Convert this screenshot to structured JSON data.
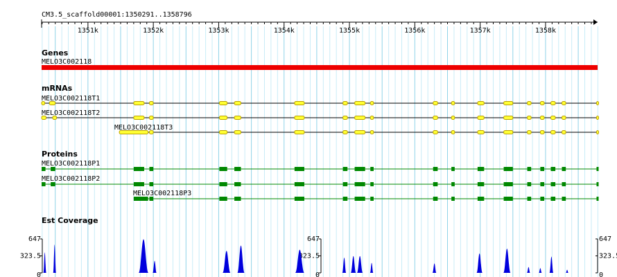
{
  "ruler": {
    "title": "CM3.5_scaffold00001:1350291..1358796",
    "start": 1350291,
    "end": 1358796,
    "tick_labels": [
      "1351k",
      "1352k",
      "1353k",
      "1354k",
      "1355k",
      "1356k",
      "1357k",
      "1358k"
    ]
  },
  "genes": {
    "section_label": "Genes",
    "items": [
      {
        "name": "MELO3C002118",
        "start": 1350291,
        "end": 1358796
      }
    ]
  },
  "mrnas": {
    "section_label": "mRNAs",
    "items": [
      {
        "name": "MELO3C002118T1",
        "start": 1350291,
        "end": 1358796,
        "exons": [
          [
            1350291,
            1350340
          ],
          [
            1350410,
            1350500
          ],
          [
            1351700,
            1351860
          ],
          [
            1351940,
            1352000
          ],
          [
            1353010,
            1353130
          ],
          [
            1353240,
            1353340
          ],
          [
            1354160,
            1354310
          ],
          [
            1354900,
            1354970
          ],
          [
            1355080,
            1355240
          ],
          [
            1355320,
            1355370
          ],
          [
            1356280,
            1356350
          ],
          [
            1356560,
            1356610
          ],
          [
            1356960,
            1357060
          ],
          [
            1357360,
            1357500
          ],
          [
            1357720,
            1357780
          ],
          [
            1357920,
            1357980
          ],
          [
            1358080,
            1358150
          ],
          [
            1358250,
            1358310
          ],
          [
            1358780,
            1358796
          ]
        ]
      },
      {
        "name": "MELO3C002118T2",
        "start": 1350291,
        "end": 1358796,
        "exons": [
          [
            1350291,
            1350360
          ],
          [
            1350460,
            1350520
          ],
          [
            1351700,
            1351860
          ],
          [
            1351940,
            1352000
          ],
          [
            1353010,
            1353130
          ],
          [
            1353240,
            1353340
          ],
          [
            1354160,
            1354310
          ],
          [
            1354900,
            1354970
          ],
          [
            1355080,
            1355240
          ],
          [
            1355320,
            1355370
          ],
          [
            1356280,
            1356350
          ],
          [
            1356560,
            1356610
          ],
          [
            1356960,
            1357060
          ],
          [
            1357360,
            1357500
          ],
          [
            1357720,
            1357780
          ],
          [
            1357920,
            1357980
          ],
          [
            1358080,
            1358150
          ],
          [
            1358250,
            1358310
          ],
          [
            1358780,
            1358796
          ]
        ]
      },
      {
        "name": "MELO3C002118T3",
        "start": 1351480,
        "end": 1358796,
        "exons": [
          [
            1351480,
            1351920
          ],
          [
            1351940,
            1352000
          ],
          [
            1353010,
            1353130
          ],
          [
            1353240,
            1353340
          ],
          [
            1354160,
            1354310
          ],
          [
            1354900,
            1354970
          ],
          [
            1355080,
            1355240
          ],
          [
            1355320,
            1355370
          ],
          [
            1356280,
            1356350
          ],
          [
            1356560,
            1356610
          ],
          [
            1356960,
            1357060
          ],
          [
            1357360,
            1357500
          ],
          [
            1357720,
            1357780
          ],
          [
            1357920,
            1357980
          ],
          [
            1358080,
            1358150
          ],
          [
            1358250,
            1358310
          ],
          [
            1358780,
            1358796
          ]
        ]
      }
    ]
  },
  "proteins": {
    "section_label": "Proteins",
    "items": [
      {
        "name": "MELO3C002118P1",
        "start": 1350291,
        "end": 1358796,
        "cds": [
          [
            1350291,
            1350350
          ],
          [
            1350430,
            1350500
          ],
          [
            1351700,
            1351860
          ],
          [
            1351940,
            1352000
          ],
          [
            1353010,
            1353130
          ],
          [
            1353240,
            1353340
          ],
          [
            1354160,
            1354310
          ],
          [
            1354900,
            1354970
          ],
          [
            1355080,
            1355240
          ],
          [
            1355320,
            1355370
          ],
          [
            1356280,
            1356350
          ],
          [
            1356560,
            1356610
          ],
          [
            1356960,
            1357060
          ],
          [
            1357360,
            1357500
          ],
          [
            1357720,
            1357780
          ],
          [
            1357920,
            1357980
          ],
          [
            1358080,
            1358150
          ],
          [
            1358250,
            1358310
          ],
          [
            1358780,
            1358796
          ]
        ]
      },
      {
        "name": "MELO3C002118P2",
        "start": 1350291,
        "end": 1358796,
        "cds": [
          [
            1350291,
            1350350
          ],
          [
            1350430,
            1350500
          ],
          [
            1351700,
            1351860
          ],
          [
            1351940,
            1352000
          ],
          [
            1353010,
            1353130
          ],
          [
            1353240,
            1353340
          ],
          [
            1354160,
            1354310
          ],
          [
            1354900,
            1354970
          ],
          [
            1355080,
            1355240
          ],
          [
            1355320,
            1355370
          ],
          [
            1356280,
            1356350
          ],
          [
            1356560,
            1356610
          ],
          [
            1356960,
            1357060
          ],
          [
            1357360,
            1357500
          ],
          [
            1357720,
            1357780
          ],
          [
            1357920,
            1357980
          ],
          [
            1358080,
            1358150
          ],
          [
            1358250,
            1358310
          ],
          [
            1358780,
            1358796
          ]
        ]
      },
      {
        "name": "MELO3C002118P3",
        "start": 1351700,
        "end": 1358796,
        "cds": [
          [
            1351700,
            1351920
          ],
          [
            1351940,
            1352000
          ],
          [
            1353010,
            1353130
          ],
          [
            1353240,
            1353340
          ],
          [
            1354160,
            1354310
          ],
          [
            1354900,
            1354970
          ],
          [
            1355080,
            1355240
          ],
          [
            1355320,
            1355370
          ],
          [
            1356280,
            1356350
          ],
          [
            1356560,
            1356610
          ],
          [
            1356960,
            1357060
          ],
          [
            1357360,
            1357500
          ],
          [
            1357720,
            1357780
          ],
          [
            1357920,
            1357980
          ],
          [
            1358080,
            1358150
          ],
          [
            1358250,
            1358310
          ],
          [
            1358780,
            1358796
          ]
        ]
      }
    ]
  },
  "est_coverage": {
    "section_label": "Est Coverage",
    "y_max_label": "647",
    "y_mid_label": "323.5",
    "y_min_label": "0",
    "y_max": 647,
    "peaks": [
      {
        "center": 1350340,
        "width": 45,
        "height": 390
      },
      {
        "center": 1350490,
        "width": 45,
        "height": 540
      },
      {
        "center": 1351850,
        "width": 150,
        "height": 640
      },
      {
        "center": 1352020,
        "width": 60,
        "height": 230
      },
      {
        "center": 1353120,
        "width": 120,
        "height": 420
      },
      {
        "center": 1353340,
        "width": 110,
        "height": 520
      },
      {
        "center": 1354240,
        "width": 140,
        "height": 440
      },
      {
        "center": 1354920,
        "width": 60,
        "height": 290
      },
      {
        "center": 1355060,
        "width": 80,
        "height": 320
      },
      {
        "center": 1355160,
        "width": 90,
        "height": 320
      },
      {
        "center": 1355340,
        "width": 50,
        "height": 190
      },
      {
        "center": 1356300,
        "width": 60,
        "height": 180
      },
      {
        "center": 1356990,
        "width": 90,
        "height": 370
      },
      {
        "center": 1357410,
        "width": 110,
        "height": 460
      },
      {
        "center": 1357740,
        "width": 50,
        "height": 110
      },
      {
        "center": 1357920,
        "width": 45,
        "height": 90
      },
      {
        "center": 1358090,
        "width": 60,
        "height": 310
      },
      {
        "center": 1358330,
        "width": 30,
        "height": 60
      }
    ]
  },
  "colors": {
    "grid_major": "#8fd3e8",
    "grid_minor": "#c8ecf7",
    "gene": "#ee0000",
    "mrna_exon": "#ffff33",
    "mrna_exon_stroke": "#bba000",
    "protein": "#008800",
    "coverage": "#0000dd"
  }
}
